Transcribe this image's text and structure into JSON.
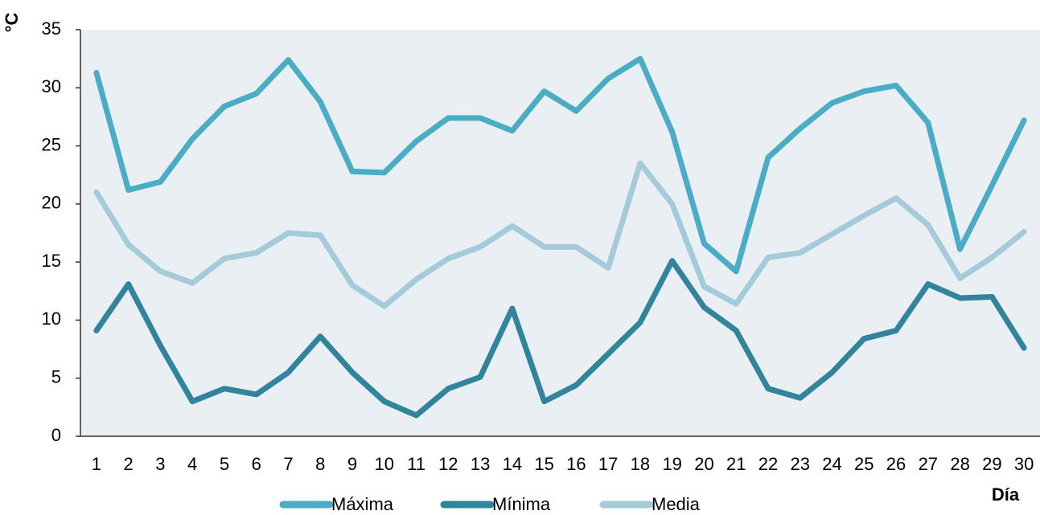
{
  "chart_data": {
    "type": "line",
    "y_label": "°C",
    "x_label": "Día",
    "categories": [
      1,
      2,
      3,
      4,
      5,
      6,
      7,
      8,
      9,
      10,
      11,
      12,
      13,
      14,
      15,
      16,
      17,
      18,
      19,
      20,
      21,
      22,
      23,
      24,
      25,
      26,
      27,
      28,
      29,
      30
    ],
    "series": [
      {
        "name": "Máxima",
        "color": "#4bacc6",
        "values": [
          31.3,
          21.2,
          21.9,
          25.6,
          28.4,
          29.5,
          32.4,
          28.8,
          22.8,
          22.7,
          25.4,
          27.4,
          27.4,
          26.3,
          29.7,
          28.0,
          30.8,
          32.5,
          26.2,
          16.6,
          14.2,
          24.0,
          26.5,
          28.7,
          29.7,
          30.2,
          27.0,
          16.1,
          21.6,
          27.2
        ]
      },
      {
        "name": "Mínima",
        "color": "#31849b",
        "values": [
          9.1,
          13.1,
          7.8,
          3.0,
          4.1,
          3.6,
          5.5,
          8.6,
          5.5,
          3.0,
          1.8,
          4.1,
          5.1,
          11.0,
          3.0,
          4.4,
          7.1,
          9.8,
          15.1,
          11.1,
          9.1,
          4.1,
          3.3,
          5.5,
          8.4,
          9.1,
          13.1,
          11.9,
          12.0,
          7.6
        ]
      },
      {
        "name": "Media",
        "color": "#a5cad9",
        "values": [
          21.0,
          16.5,
          14.2,
          13.2,
          15.3,
          15.8,
          17.5,
          17.3,
          13.0,
          11.2,
          13.5,
          15.3,
          16.3,
          18.1,
          16.3,
          16.3,
          14.5,
          23.5,
          20.0,
          12.9,
          11.4,
          15.4,
          15.8,
          17.4,
          19.0,
          20.5,
          18.2,
          13.6,
          15.4,
          17.6
        ]
      }
    ],
    "ylim": [
      0,
      35
    ],
    "yticks": [
      0,
      5,
      10,
      15,
      20,
      25,
      30,
      35
    ],
    "legend": "bottom",
    "plot_background": "#e9eff3"
  }
}
